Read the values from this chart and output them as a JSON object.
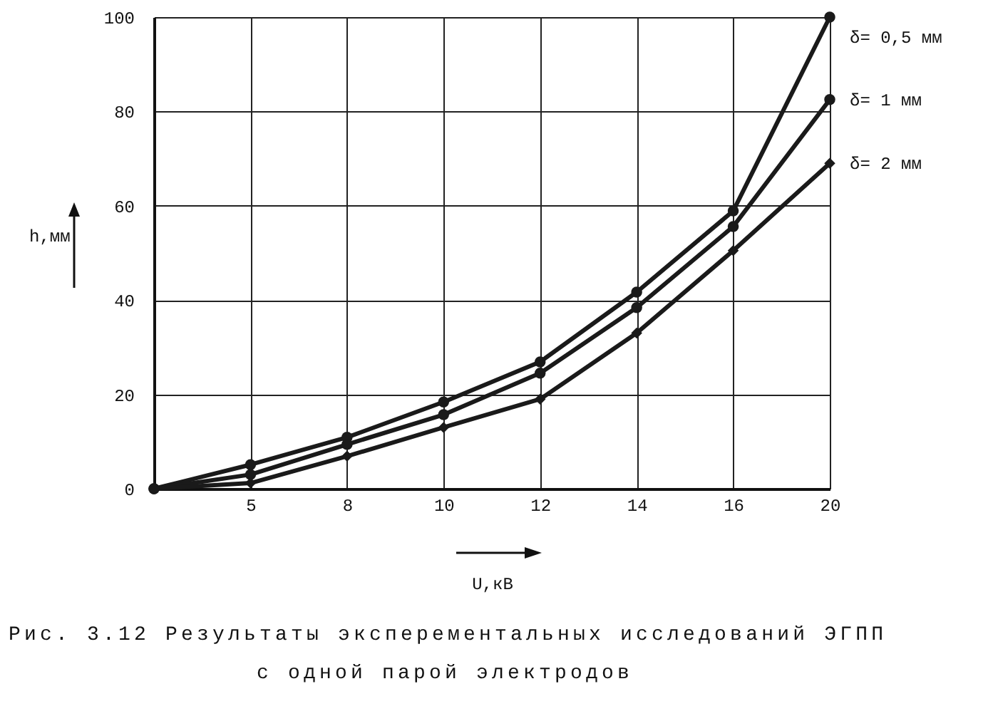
{
  "chart_data": {
    "type": "line",
    "xlabel": "U,кВ",
    "ylabel": "h,мм",
    "categories": [
      null,
      "5",
      "8",
      "10",
      "12",
      "14",
      "16",
      "20"
    ],
    "series": [
      {
        "name": "δ= 0,5 мм",
        "color": "#1a1a1a",
        "marker": "circle",
        "values": [
          0,
          5.1,
          10.9,
          18.4,
          26.9,
          41.7,
          58.9,
          100
        ]
      },
      {
        "name": "δ= 1 мм",
        "color": "#1a1a1a",
        "marker": "circle",
        "values": [
          0,
          3,
          9.4,
          15.7,
          24.5,
          38.4,
          55.6,
          82.5
        ]
      },
      {
        "name": "δ= 2 мм",
        "color": "#1a1a1a",
        "marker": "diamond",
        "values": [
          0,
          1.2,
          6.9,
          13,
          19,
          33,
          50.5,
          69
        ]
      }
    ],
    "ylim": [
      0,
      100
    ],
    "yticks": [
      0,
      20,
      40,
      60,
      80,
      100
    ],
    "grid": true,
    "legend": false,
    "annotations": [
      "Рис. 3.12 Результаты эксперементальных исследований ЭГПП",
      "с одной парой электродов"
    ]
  }
}
